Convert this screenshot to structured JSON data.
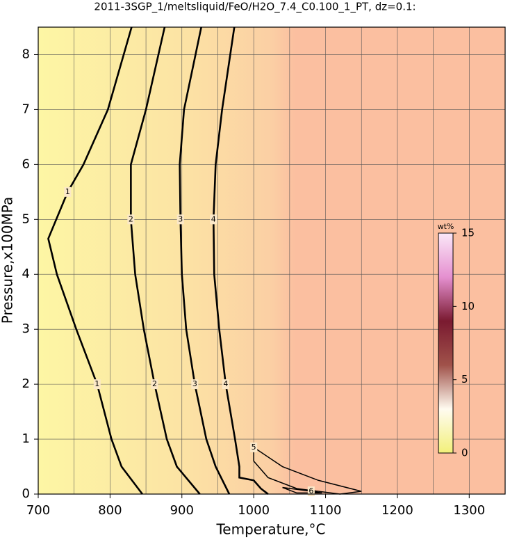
{
  "chart_data": {
    "type": "contour",
    "title": "2011-3SGP_1/meltsliquid/FeO/H2O_7.4_C0.100_1_PT, dz=0.1:",
    "x_label": "Temperature,°C",
    "y_label": "Pressure,x100MPa",
    "xlim": [
      700,
      1350
    ],
    "ylim": [
      0,
      8.5
    ],
    "xticks": [
      700,
      800,
      900,
      1000,
      1100,
      1200,
      1300
    ],
    "yticks": [
      0,
      1,
      2,
      3,
      4,
      5,
      6,
      7,
      8
    ],
    "xgrid": [
      750,
      850,
      950,
      1050,
      1150,
      1250
    ],
    "grid": true,
    "contours": [
      {
        "level": 1,
        "x": [
          830,
          797,
          763,
          741,
          714,
          726,
          753,
          782,
          802,
          816,
          845
        ],
        "y": [
          8.5,
          7,
          6,
          5.5,
          4.65,
          4,
          3,
          2,
          1,
          0.5,
          0
        ]
      },
      {
        "level": 2,
        "x": [
          876,
          850,
          829,
          829,
          835,
          847,
          862,
          879,
          893,
          925
        ],
        "y": [
          8.5,
          7,
          6,
          5,
          4,
          3,
          2,
          1,
          0.5,
          0
        ]
      },
      {
        "level": 3,
        "x": [
          927,
          903,
          897,
          898,
          900,
          906,
          918,
          934,
          947,
          966
        ],
        "y": [
          8.5,
          7,
          6,
          5,
          4,
          3,
          2,
          1,
          0.5,
          0
        ]
      },
      {
        "level": 4,
        "x": [
          973,
          956,
          947,
          944,
          945,
          952,
          961,
          974,
          980,
          980,
          1000,
          1010,
          1020
        ],
        "y": [
          8.5,
          7,
          6,
          5,
          4,
          3,
          2,
          1,
          0.5,
          0.3,
          0.25,
          0.1,
          0
        ]
      },
      {
        "level": 5,
        "x": [
          1000,
          1040,
          1090,
          1150,
          1120,
          1060,
          1020,
          1000,
          1000
        ],
        "y": [
          0.85,
          0.5,
          0.25,
          0.05,
          0,
          0.1,
          0.3,
          0.6,
          0.85
        ]
      },
      {
        "level": 6,
        "x": [
          1040,
          1080,
          1095,
          1060,
          1040
        ],
        "y": [
          0.12,
          0.05,
          0.02,
          0.02,
          0.12
        ]
      }
    ],
    "colorbar": {
      "label": "wt%",
      "lim": [
        0,
        15
      ],
      "ticks": [
        0,
        5,
        10,
        15
      ]
    }
  }
}
